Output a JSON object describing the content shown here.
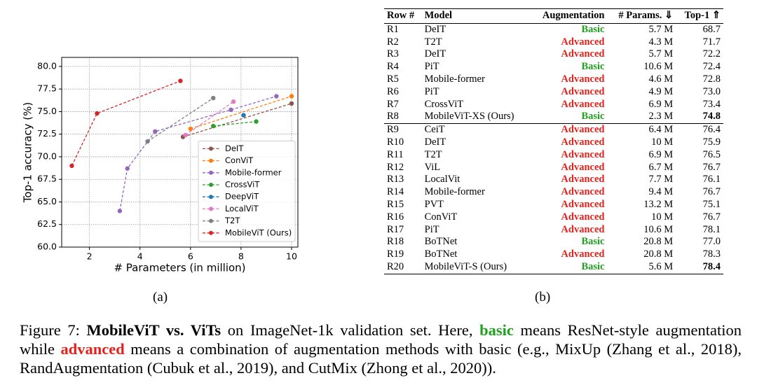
{
  "chart_data": {
    "type": "line",
    "xlabel": "# Parameters (in million)",
    "ylabel": "Top-1 accuracy (%)",
    "xlim": [
      0.9,
      10.25
    ],
    "xticks": [
      2,
      4,
      6,
      8,
      10
    ],
    "ylim": [
      60,
      81
    ],
    "yticks": [
      {
        "value": 60,
        "label": "60.0"
      },
      {
        "value": 62.5,
        "label": "62.5"
      },
      {
        "value": 65,
        "label": "65.0"
      },
      {
        "value": 67.5,
        "label": "67.5"
      },
      {
        "value": 70,
        "label": "70.0"
      },
      {
        "value": 72.5,
        "label": "72.5"
      },
      {
        "value": 75,
        "label": "75.0"
      },
      {
        "value": 77.5,
        "label": "77.5"
      },
      {
        "value": 80,
        "label": "80.0"
      }
    ],
    "grid": true,
    "legend": "lower right",
    "series": [
      {
        "name": "DeIT",
        "color": "#8c564b",
        "x": [
          5.7,
          10
        ],
        "values": [
          72.2,
          75.9
        ]
      },
      {
        "name": "ConViT",
        "color": "#ff7f0e",
        "x": [
          6,
          10
        ],
        "values": [
          73.1,
          76.7
        ]
      },
      {
        "name": "Mobile-former",
        "color": "#9467bd",
        "x": [
          3.2,
          3.5,
          4.6,
          7.6,
          9.4
        ],
        "values": [
          64.0,
          68.7,
          72.8,
          75.2,
          76.7
        ]
      },
      {
        "name": "CrossViT",
        "color": "#2ca02c",
        "x": [
          6.9,
          8.6
        ],
        "values": [
          73.4,
          73.9
        ]
      },
      {
        "name": "DeepViT",
        "color": "#1f77b4",
        "x": [
          8.1
        ],
        "values": [
          74.6
        ]
      },
      {
        "name": "LocalViT",
        "color": "#e377c2",
        "x": [
          5.8,
          7.7
        ],
        "values": [
          72.4,
          76.1
        ]
      },
      {
        "name": "T2T",
        "color": "#7f7f7f",
        "x": [
          4.3,
          6.9
        ],
        "values": [
          71.7,
          76.5
        ]
      },
      {
        "name": "MobileViT (Ours)",
        "color": "#d62728",
        "x": [
          1.3,
          2.3,
          5.6
        ],
        "values": [
          69.0,
          74.8,
          78.4
        ]
      }
    ]
  },
  "panel_labels": [
    "(a)",
    "(b)"
  ],
  "table": {
    "header": [
      "Row #",
      "Model",
      "Augmentation",
      "# Params. ⇓",
      "Top-1 ⇑"
    ],
    "augmentation_colors": {
      "Basic": "#1fa01f",
      "Advanced": "#e3221c"
    },
    "bold_cells": [
      [
        7,
        4
      ],
      [
        19,
        4
      ]
    ],
    "separator_after_row": 7,
    "rows": [
      [
        "R1",
        "DeIT",
        "Basic",
        "5.7 M",
        "68.7"
      ],
      [
        "R2",
        "T2T",
        "Advanced",
        "4.3 M",
        "71.7"
      ],
      [
        "R3",
        "DeIT",
        "Advanced",
        "5.7 M",
        "72.2"
      ],
      [
        "R4",
        "PiT",
        "Basic",
        "10.6 M",
        "72.4"
      ],
      [
        "R5",
        "Mobile-former",
        "Advanced",
        "4.6 M",
        "72.8"
      ],
      [
        "R6",
        "PiT",
        "Advanced",
        "4.9 M",
        "73.0"
      ],
      [
        "R7",
        "CrossViT",
        "Advanced",
        "6.9 M",
        "73.4"
      ],
      [
        "R8",
        "MobileViT-XS (Ours)",
        "Basic",
        "2.3 M",
        "74.8"
      ],
      [
        "R9",
        "CeiT",
        "Advanced",
        "6.4 M",
        "76.4"
      ],
      [
        "R10",
        "DeIT",
        "Advanced",
        "10 M",
        "75.9"
      ],
      [
        "R11",
        "T2T",
        "Advanced",
        "6.9 M",
        "76.5"
      ],
      [
        "R12",
        "ViL",
        "Advanced",
        "6.7 M",
        "76.7"
      ],
      [
        "R13",
        "LocalVit",
        "Advanced",
        "7.7 M",
        "76.1"
      ],
      [
        "R14",
        "Mobile-former",
        "Advanced",
        "9.4 M",
        "76.7"
      ],
      [
        "R15",
        "PVT",
        "Advanced",
        "13.2 M",
        "75.1"
      ],
      [
        "R16",
        "ConViT",
        "Advanced",
        "10 M",
        "76.7"
      ],
      [
        "R17",
        "PiT",
        "Advanced",
        "10.6 M",
        "78.1"
      ],
      [
        "R18",
        "BoTNet",
        "Basic",
        "20.8 M",
        "77.0"
      ],
      [
        "R19",
        "BoTNet",
        "Advanced",
        "20.8 M",
        "78.3"
      ],
      [
        "R20",
        "MobileViT-S (Ours)",
        "Basic",
        "5.6 M",
        "78.4"
      ]
    ]
  },
  "caption": {
    "label": "Figure 7:",
    "bold": "MobileViT vs. ViTs",
    "text1": " on ImageNet-1k validation set. Here, ",
    "basic": "basic",
    "text2": " means ResNet-style augmentation while ",
    "advanced": "advanced",
    "text3": " means a combination of augmentation methods with basic (e.g., MixUp (Zhang et al., 2018), RandAugmentation (Cubuk et al., 2019), and CutMix (Zhong et al., 2020))."
  }
}
